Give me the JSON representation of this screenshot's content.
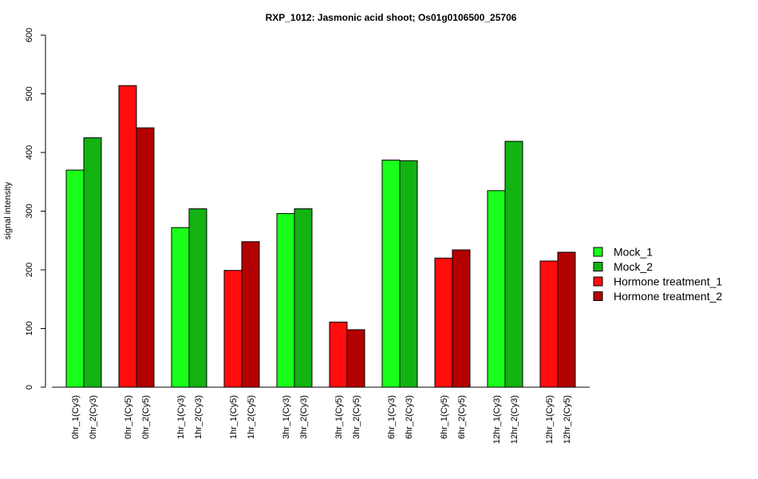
{
  "chart_data": {
    "type": "bar",
    "title": "RXP_1012: Jasmonic acid shoot; Os01g0106500_25706",
    "ylabel": "signal intensity",
    "xlabel": "",
    "ylim": [
      0,
      600
    ],
    "yticks": [
      0,
      100,
      200,
      300,
      400,
      500,
      600
    ],
    "grid": false,
    "legend_position": "right",
    "groups": [
      {
        "bars": [
          {
            "label": "0hr_1(Cy3)",
            "value": 370,
            "series": 0
          },
          {
            "label": "0hr_2(Cy3)",
            "value": 425,
            "series": 1
          }
        ]
      },
      {
        "bars": [
          {
            "label": "0hr_1(Cy5)",
            "value": 514,
            "series": 2
          },
          {
            "label": "0hr_2(Cy5)",
            "value": 442,
            "series": 3
          }
        ]
      },
      {
        "bars": [
          {
            "label": "1hr_1(Cy3)",
            "value": 272,
            "series": 0
          },
          {
            "label": "1hr_2(Cy3)",
            "value": 304,
            "series": 1
          }
        ]
      },
      {
        "bars": [
          {
            "label": "1hr_1(Cy5)",
            "value": 199,
            "series": 2
          },
          {
            "label": "1hr_2(Cy5)",
            "value": 248,
            "series": 3
          }
        ]
      },
      {
        "bars": [
          {
            "label": "3hr_1(Cy3)",
            "value": 296,
            "series": 0
          },
          {
            "label": "3hr_2(Cy3)",
            "value": 304,
            "series": 1
          }
        ]
      },
      {
        "bars": [
          {
            "label": "3hr_1(Cy5)",
            "value": 111,
            "series": 2
          },
          {
            "label": "3hr_2(Cy5)",
            "value": 98,
            "series": 3
          }
        ]
      },
      {
        "bars": [
          {
            "label": "6hr_1(Cy3)",
            "value": 387,
            "series": 0
          },
          {
            "label": "6hr_2(Cy3)",
            "value": 386,
            "series": 1
          }
        ]
      },
      {
        "bars": [
          {
            "label": "6hr_1(Cy5)",
            "value": 220,
            "series": 2
          },
          {
            "label": "6hr_2(Cy5)",
            "value": 234,
            "series": 3
          }
        ]
      },
      {
        "bars": [
          {
            "label": "12hr_1(Cy3)",
            "value": 335,
            "series": 0
          },
          {
            "label": "12hr_2(Cy3)",
            "value": 419,
            "series": 1
          }
        ]
      },
      {
        "bars": [
          {
            "label": "12hr_1(Cy5)",
            "value": 215,
            "series": 2
          },
          {
            "label": "12hr_2(Cy5)",
            "value": 230,
            "series": 3
          }
        ]
      }
    ],
    "series": [
      {
        "name": "Mock_1",
        "color": "#1aff1a"
      },
      {
        "name": "Mock_2",
        "color": "#12b312"
      },
      {
        "name": "Hormone treatment_1",
        "color": "#ff0d0d"
      },
      {
        "name": "Hormone treatment_2",
        "color": "#b30000"
      }
    ]
  }
}
